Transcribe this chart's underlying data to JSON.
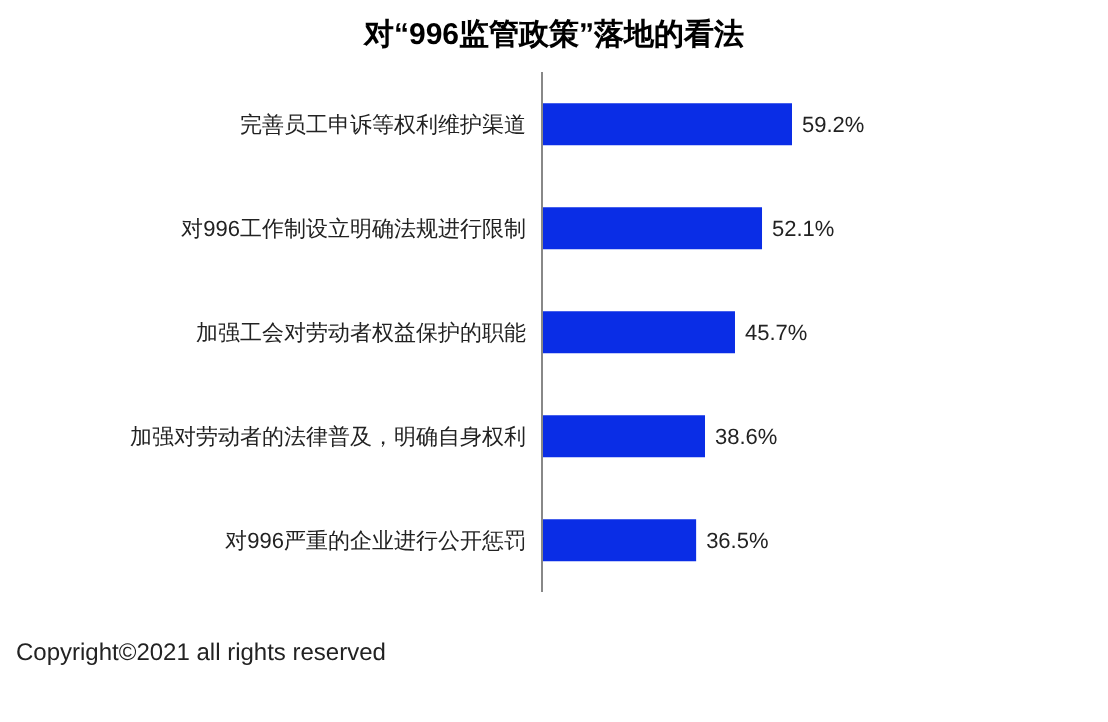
{
  "chart_data": {
    "type": "bar",
    "orientation": "horizontal",
    "title": "对“996监管政策”落地的看法",
    "categories": [
      "完善员工申诉等权利维护渠道",
      "对996工作制设立明确法规进行限制",
      "加强工会对劳动者权益保护的职能",
      "加强对劳动者的法律普及，明确自身权利",
      "对996严重的企业进行公开惩罚"
    ],
    "values": [
      59.2,
      52.1,
      45.7,
      38.6,
      36.5
    ],
    "value_labels": [
      "59.2%",
      "52.1%",
      "45.7%",
      "38.6%",
      "36.5%"
    ],
    "color": "#0a2de6",
    "annotations": [
      "Copyright©2021 all rights reserved"
    ]
  }
}
